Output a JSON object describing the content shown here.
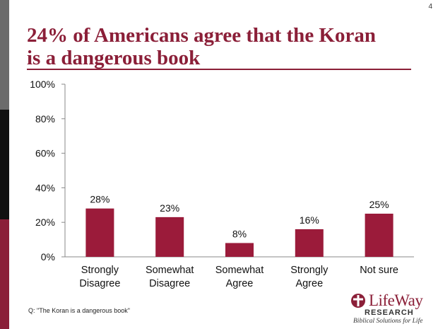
{
  "page_number": "4",
  "title_line1": "24% of Americans agree that the Koran",
  "title_line2": "is a dangerous book",
  "footnote": "Q: \"The Koran is a dangerous book\"",
  "logo": {
    "name": "LifeWay",
    "sub": "RESEARCH",
    "tagline": "Biblical Solutions for Life"
  },
  "colors": {
    "bar": "#9b1b3a",
    "title": "#8b1f38",
    "sidebar_top": "#6b6b6b",
    "sidebar_mid": "#111111",
    "sidebar_bottom": "#8b1f38"
  },
  "chart_data": {
    "type": "bar",
    "categories": [
      [
        "Strongly",
        "Disagree"
      ],
      [
        "Somewhat",
        "Disagree"
      ],
      [
        "Somewhat",
        "Agree"
      ],
      [
        "Strongly",
        "Agree"
      ],
      [
        "Not sure"
      ]
    ],
    "values": [
      28,
      23,
      8,
      16,
      25
    ],
    "data_labels": [
      "28%",
      "23%",
      "8%",
      "16%",
      "25%"
    ],
    "yticks": [
      "0%",
      "20%",
      "40%",
      "60%",
      "80%",
      "100%"
    ],
    "ylim": [
      0,
      100
    ],
    "grid": false,
    "legend": "none"
  }
}
